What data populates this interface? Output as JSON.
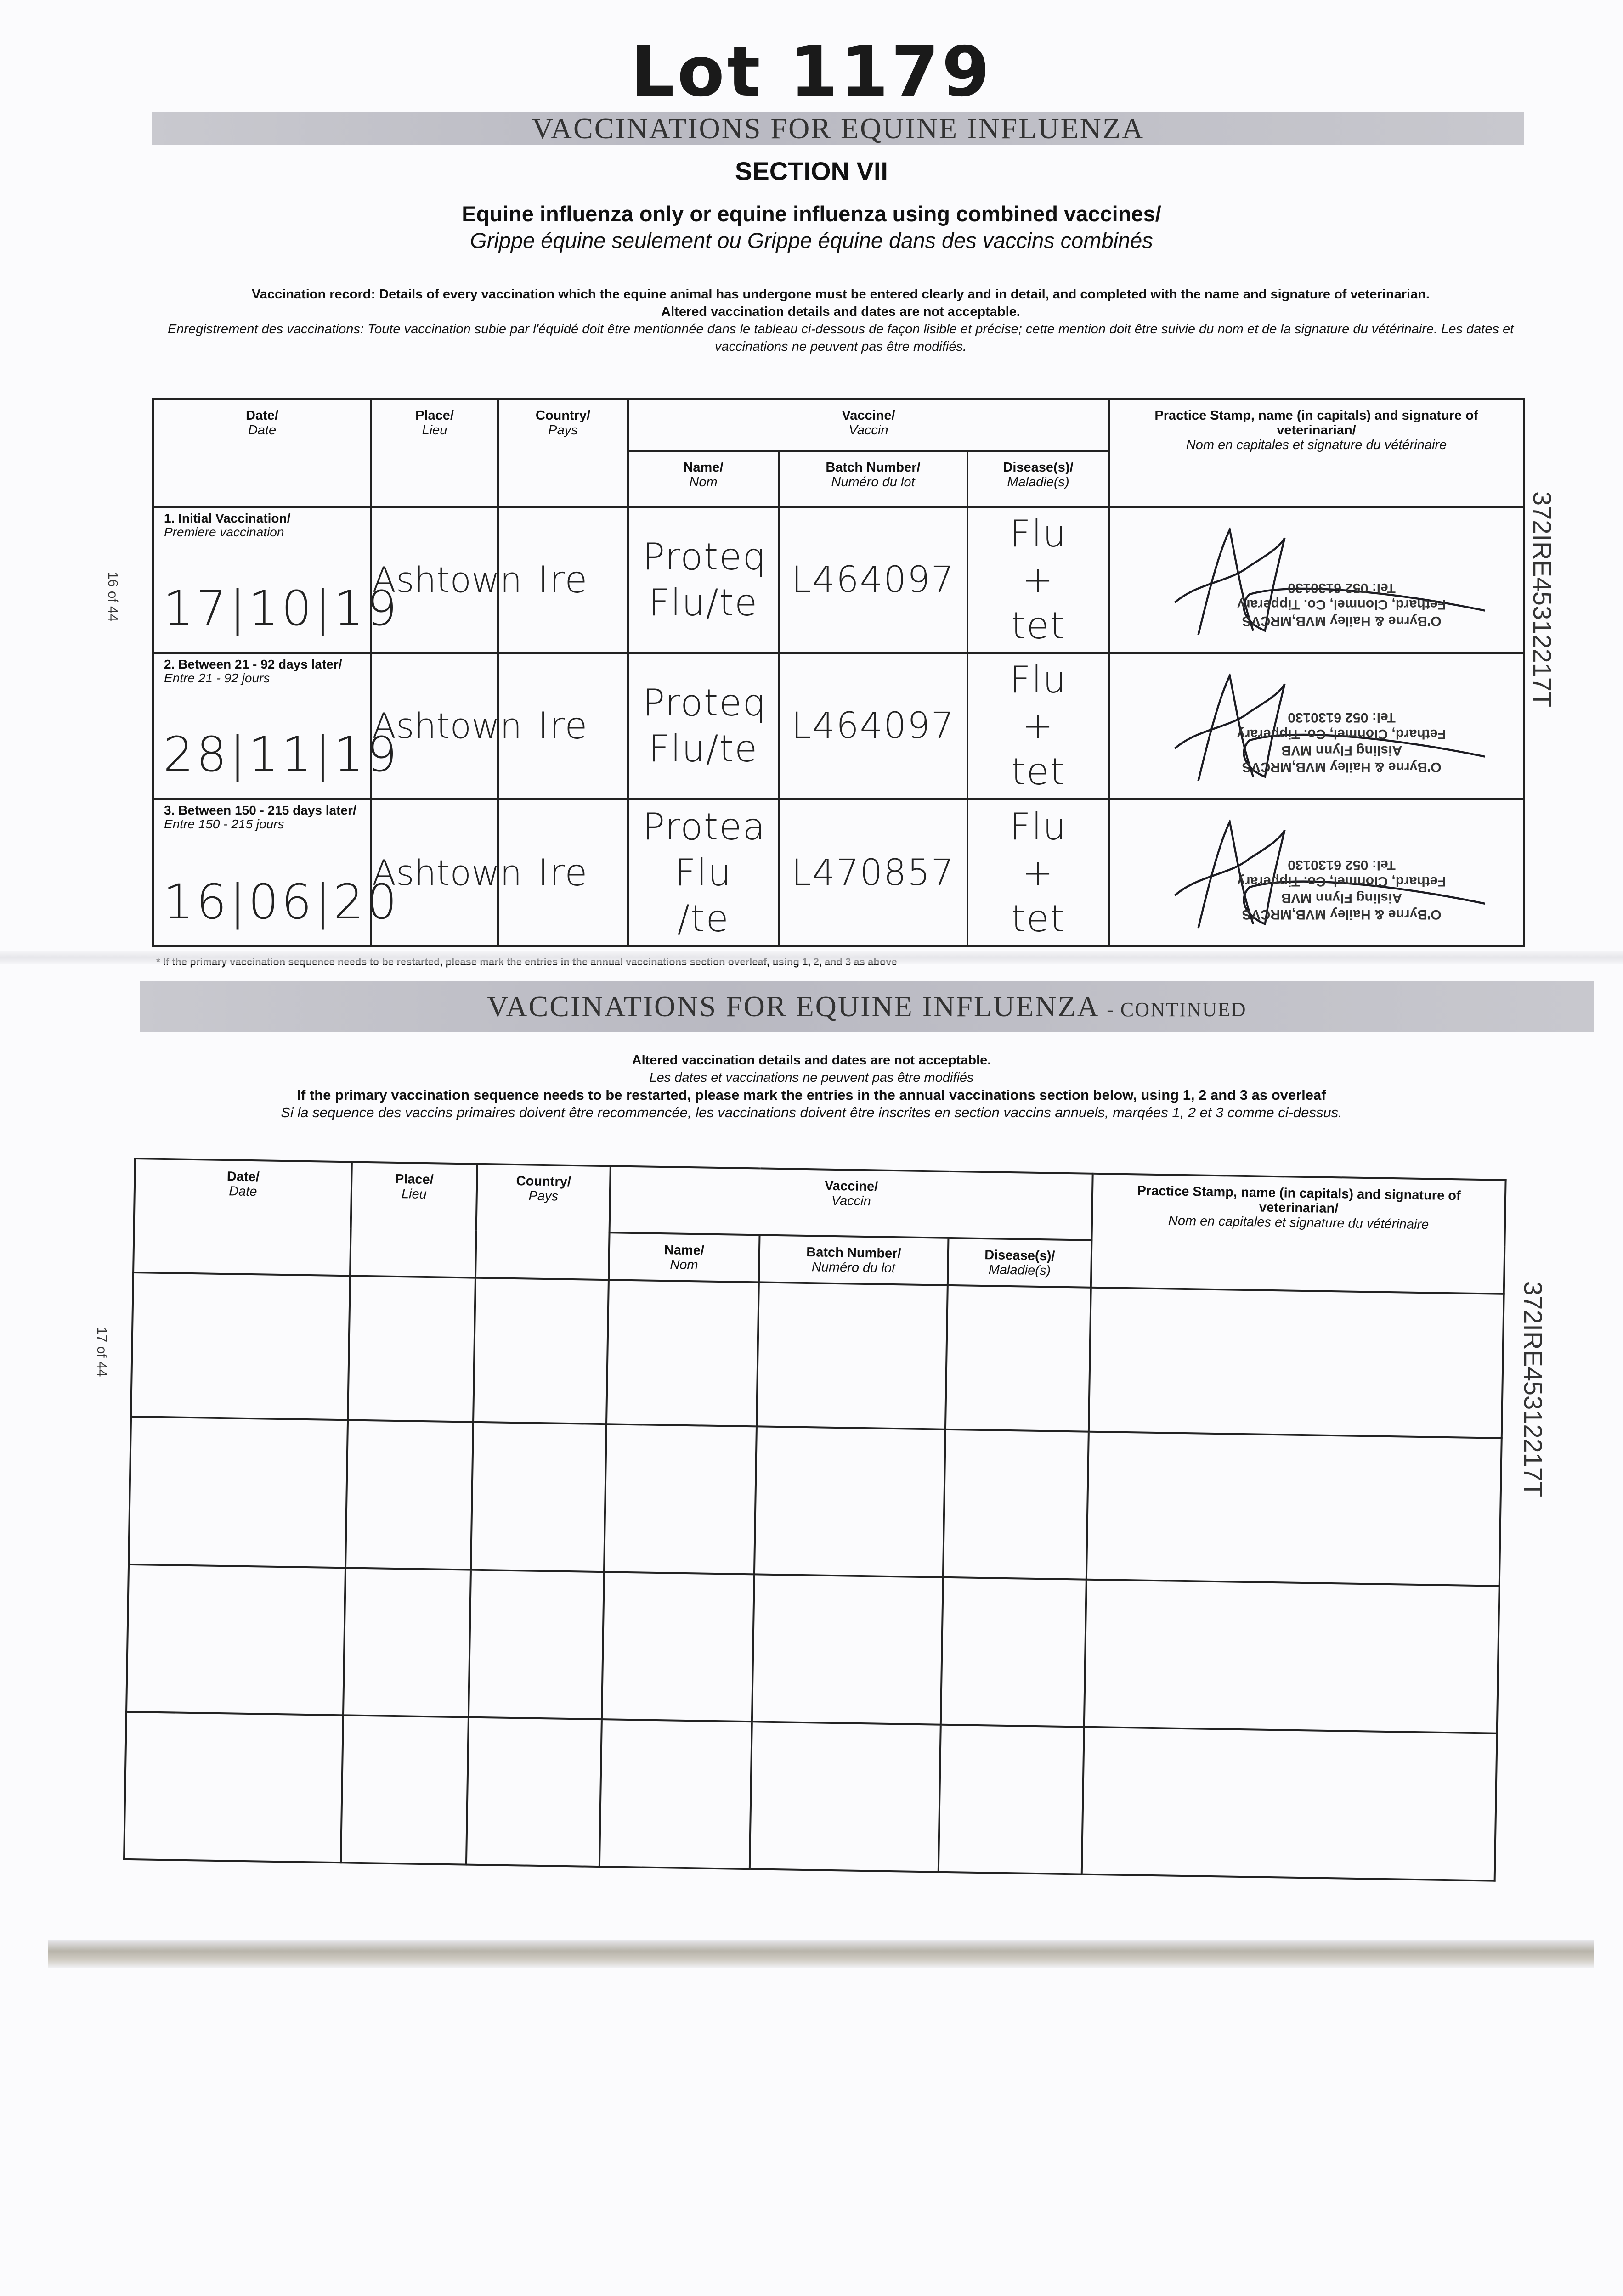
{
  "lot_label": "Lot 1179",
  "page1": {
    "band_title": "VACCINATIONS FOR EQUINE INFLUENZA",
    "section": "SECTION VII",
    "subtitle_en": "Equine influenza only or equine influenza using combined vaccines/",
    "subtitle_fr": "Grippe équine seulement ou Grippe équine dans des vaccins combinés",
    "note_en_1": "Vaccination record: Details of every vaccination which the equine animal has undergone must be entered clearly and in detail, and completed with the name and signature of veterinarian.",
    "note_en_2": "Altered vaccination details and dates are not acceptable.",
    "note_fr": "Enregistrement des vaccinations: Toute vaccination subie par l'équidé doit être mentionnée dans le tableau ci-dessous de façon lisible et précise; cette mention doit être suivie du nom et de la signature du vétérinaire. Les dates et vaccinations ne peuvent pas être modifiés.",
    "page_number": "16 of 44",
    "side_id": "372IRE45312217T",
    "footnote": "* If the primary vaccination sequence needs to be restarted, please mark the entries in the annual vaccinations section overleaf, using 1, 2, and 3 as above",
    "headers": {
      "date": "Date/",
      "date_fr": "Date",
      "place": "Place/",
      "place_fr": "Lieu",
      "country": "Country/",
      "country_fr": "Pays",
      "vaccine": "Vaccine/",
      "vaccine_fr": "Vaccin",
      "name": "Name/",
      "name_fr": "Nom",
      "batch": "Batch Number/",
      "batch_fr": "Numéro du lot",
      "disease": "Disease(s)/",
      "disease_fr": "Maladie(s)",
      "stamp": "Practice Stamp, name (in capitals) and signature of veterinarian/",
      "stamp_fr": "Nom en capitales et signature du vétérinaire"
    },
    "rows": [
      {
        "label": "1. Initial Vaccination/",
        "label_fr": "Premiere vaccination",
        "date": "17|10|19",
        "place": "Ashtown",
        "country": "Ire",
        "name": "Proteq Flu/te",
        "batch": "L464097",
        "disease": "Flu + tet",
        "stamp": [
          "O'Byrne & Hailey MVB,MRCVS",
          "Fethard, Clonmel, Co. Tipperary",
          "Tel: 052 6130130"
        ]
      },
      {
        "label": "2. Between 21 - 92 days later/",
        "label_fr": "Entre 21 - 92 jours",
        "date": "28|11|19",
        "place": "Ashtown",
        "country": "Ire",
        "name": "Proteq Flu/te",
        "batch": "L464097",
        "disease": "Flu + tet",
        "stamp": [
          "O'Byrne & Hailey MVB,MRCVS",
          "Aisling Flynn MVB",
          "Fethard, Clonmel, Co. Tipperary",
          "Tel: 052 6130130"
        ]
      },
      {
        "label": "3. Between 150 - 215 days later/",
        "label_fr": "Entre 150 - 215 jours",
        "date": "16|06|20",
        "place": "Ashtown",
        "country": "Ire",
        "name": "Protea Flu /te",
        "batch": "L470857",
        "disease": "Flu + tet",
        "stamp": [
          "O'Byrne & Hailey MVB,MRCVS",
          "Aisling Flynn MVB",
          "Fethard, Clonmel, Co. Tipperary",
          "Tel: 052 6130130"
        ]
      }
    ]
  },
  "page2": {
    "band_title": "VACCINATIONS FOR EQUINE INFLUENZA",
    "band_suffix": "- CONTINUED",
    "note_en": "Altered vaccination details and dates are not acceptable.",
    "note_fr": "Les dates et vaccinations ne peuvent pas être modifiés",
    "restart_en": "If the primary vaccination sequence needs to be restarted, please mark the entries in the annual vaccinations section below, using 1, 2 and 3 as overleaf",
    "restart_fr": "Si la sequence des vaccins primaires doivent être recommencée, les vaccinations doivent être inscrites en section vaccins annuels, marqées 1, 2 et 3 comme ci-dessus.",
    "page_number": "17 of 44",
    "side_id": "372IRE45312217T",
    "empty_rows": 4
  }
}
